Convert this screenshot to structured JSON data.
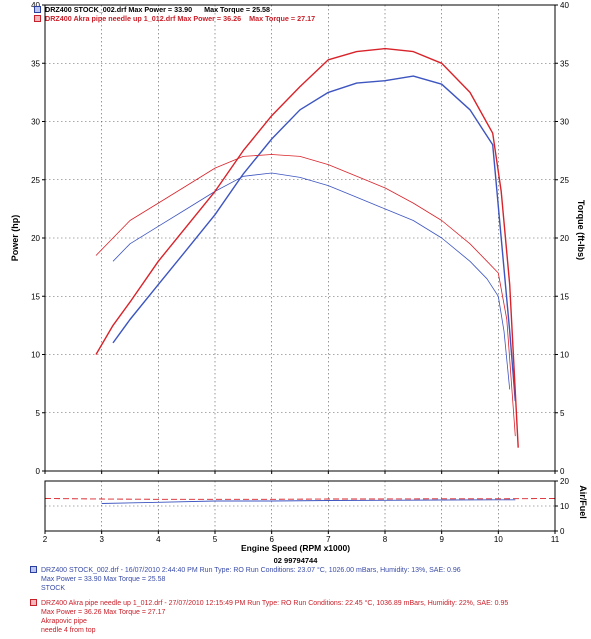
{
  "header": {
    "run1": {
      "file": "DRZ400 STOCK_002.drf",
      "max_power_text": "Max Power = 33.90",
      "max_torque_text": "Max Torque = 25.58"
    },
    "run2": {
      "file": "DRZ400 Akra pipe needle up 1_012.drf",
      "max_power_text": "Max Power = 36.26",
      "max_torque_text": "Max Torque = 27.17"
    }
  },
  "dyno_id": "02 99794744",
  "legend": {
    "run1": {
      "line1": "DRZ400 STOCK_002.drf - 16/07/2010 2:44:40 PM  Run Type: RO  Run Conditions: 23.07 °C, 1026.00 mBars,  Humidity:  13%, SAE: 0.96",
      "line2": "Max Power = 33.90  Max Torque = 25.58",
      "line3": "STOCK"
    },
    "run2": {
      "line1": "DRZ400 Akra pipe needle up 1_012.drf - 27/07/2010 12:15:49 PM  Run Type: RO  Run Conditions: 22.45 °C, 1036.89 mBars,  Humidity:  22%, SAE: 0.95",
      "line2": "Max Power = 36.26  Max Torque = 27.17",
      "line3": "Akrapovic pipe",
      "line4": "needle 4 from top"
    }
  },
  "colors": {
    "stock": "#3d55c0",
    "akra": "#d8232a",
    "grid": "#555555",
    "axis": "#000000"
  },
  "chart_data": [
    {
      "type": "line",
      "xlabel": "Engine Speed (RPM x1000)",
      "ylabel": "Power (hp)",
      "y2label": "Torque (ft-lbs)",
      "xlim": [
        2,
        11
      ],
      "ylim": [
        0,
        40
      ],
      "y2lim": [
        0,
        40
      ],
      "x_ticks": [
        2,
        3,
        4,
        5,
        6,
        7,
        8,
        9,
        10,
        11
      ],
      "y_ticks": [
        0,
        5,
        10,
        15,
        20,
        25,
        30,
        35,
        40
      ],
      "y2_ticks": [
        0,
        5,
        10,
        15,
        20,
        25,
        30,
        35,
        40
      ],
      "grid": true,
      "series": [
        {
          "name": "DRZ400 STOCK_002.drf Power",
          "axis": "left",
          "color": "#3d55c0",
          "x": [
            3.2,
            3.5,
            4.0,
            4.5,
            5.0,
            5.5,
            6.0,
            6.5,
            7.0,
            7.5,
            8.0,
            8.5,
            9.0,
            9.5,
            9.9,
            10.05,
            10.2,
            10.3
          ],
          "y": [
            11.0,
            13.0,
            16.0,
            19.0,
            22.0,
            25.5,
            28.5,
            31.0,
            32.5,
            33.3,
            33.5,
            33.9,
            33.2,
            31.0,
            28.0,
            20.0,
            12.0,
            6.0
          ]
        },
        {
          "name": "DRZ400 STOCK_002.drf Torque",
          "axis": "right",
          "color": "#3d55c0",
          "x": [
            3.2,
            3.5,
            4.0,
            4.5,
            5.0,
            5.5,
            6.0,
            6.5,
            7.0,
            7.5,
            8.0,
            8.5,
            9.0,
            9.5,
            9.8,
            10.0,
            10.1,
            10.2
          ],
          "y": [
            18.0,
            19.5,
            21.0,
            22.5,
            24.0,
            25.3,
            25.58,
            25.2,
            24.5,
            23.5,
            22.5,
            21.5,
            20.0,
            18.0,
            16.5,
            15.0,
            12.0,
            7.0
          ]
        },
        {
          "name": "DRZ400 Akra pipe needle up 1_012.drf Power",
          "axis": "left",
          "color": "#d8232a",
          "x": [
            2.9,
            3.2,
            3.5,
            4.0,
            4.5,
            5.0,
            5.5,
            6.0,
            6.5,
            7.0,
            7.5,
            8.0,
            8.5,
            9.0,
            9.5,
            9.9,
            10.05,
            10.2,
            10.35
          ],
          "y": [
            10.0,
            12.5,
            14.5,
            18.0,
            21.0,
            24.0,
            27.5,
            30.5,
            33.0,
            35.3,
            36.0,
            36.26,
            36.0,
            35.0,
            32.5,
            29.0,
            24.0,
            16.0,
            2.0
          ]
        },
        {
          "name": "DRZ400 Akra pipe needle up 1_012.drf Torque",
          "axis": "right",
          "color": "#d8232a",
          "x": [
            2.9,
            3.2,
            3.5,
            4.0,
            4.5,
            5.0,
            5.5,
            6.0,
            6.5,
            7.0,
            7.5,
            8.0,
            8.5,
            9.0,
            9.5,
            9.8,
            10.0,
            10.15,
            10.3
          ],
          "y": [
            18.5,
            20.0,
            21.5,
            23.0,
            24.5,
            26.0,
            27.0,
            27.17,
            27.0,
            26.3,
            25.3,
            24.3,
            23.0,
            21.5,
            19.5,
            18.0,
            17.0,
            13.0,
            3.0
          ]
        }
      ]
    },
    {
      "type": "line",
      "ylabel": "Air/Fuel",
      "xlim": [
        2,
        11
      ],
      "ylim": [
        0,
        20
      ],
      "y_ticks": [
        0,
        10,
        20
      ],
      "grid": true,
      "series": [
        {
          "name": "DRZ400 STOCK_002.drf AFR",
          "color": "#3d55c0",
          "dash": false,
          "x": [
            3.0,
            4.0,
            5.0,
            6.0,
            7.0,
            8.0,
            9.0,
            10.0,
            10.3
          ],
          "y": [
            11.0,
            11.5,
            12.0,
            12.0,
            12.2,
            12.3,
            12.4,
            12.5,
            12.5
          ]
        },
        {
          "name": "DRZ400 Akra pipe needle up 1_012.drf AFR",
          "color": "#d8232a",
          "dash": true,
          "x": [
            2.0,
            3.0,
            4.0,
            5.0,
            6.0,
            7.0,
            8.0,
            9.0,
            10.0,
            11.0
          ],
          "y": [
            13.0,
            12.8,
            12.7,
            12.7,
            12.7,
            12.8,
            12.8,
            12.9,
            12.9,
            13.0
          ]
        }
      ]
    }
  ]
}
